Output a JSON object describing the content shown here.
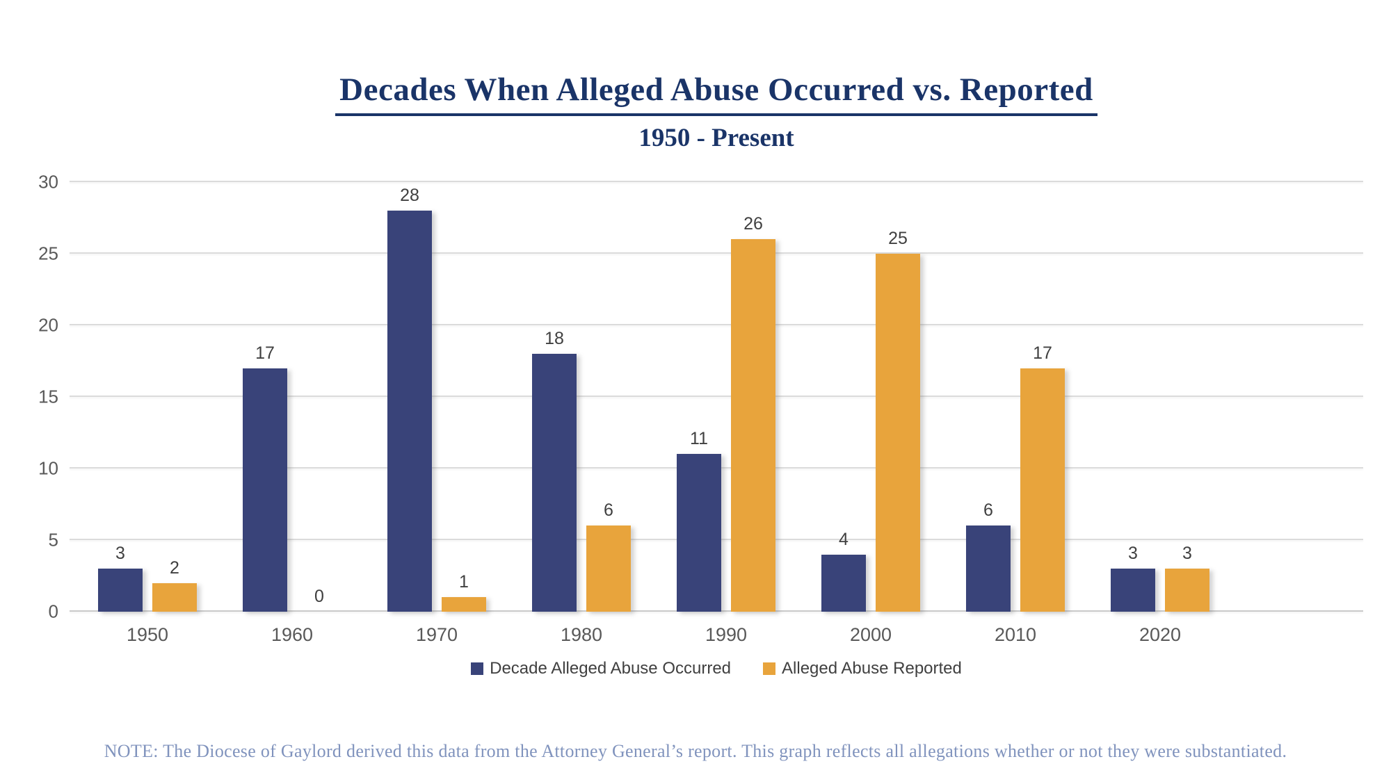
{
  "header": {
    "title": "Decades When Alleged Abuse Occurred vs. Reported",
    "subtitle": "1950 - Present"
  },
  "chart_data": {
    "type": "bar",
    "title": "Decades When Alleged Abuse Occurred vs. Reported",
    "subtitle": "1950 - Present",
    "categories": [
      "1950",
      "1960",
      "1970",
      "1980",
      "1990",
      "2000",
      "2010",
      "2020"
    ],
    "series": [
      {
        "name": "Decade Alleged Abuse Occurred",
        "color": "#394379",
        "values": [
          3,
          17,
          28,
          18,
          11,
          4,
          6,
          3
        ]
      },
      {
        "name": "Alleged Abuse Reported",
        "color": "#E8A43C",
        "values": [
          2,
          0,
          1,
          6,
          26,
          25,
          17,
          3
        ]
      }
    ],
    "xlabel": "",
    "ylabel": "",
    "ylim": [
      0,
      30
    ],
    "yticks": [
      0,
      5,
      10,
      15,
      20,
      25,
      30
    ],
    "grid": true,
    "legend_position": "bottom",
    "data_labels": true
  },
  "note": {
    "text": "NOTE: The Diocese of Gaylord derived this data from the Attorney General’s report. This graph reflects all allegations whether or not they were substantiated."
  },
  "colors": {
    "title_navy": "#1A3468",
    "note_blue": "#8093BD",
    "axis_gray": "#595959",
    "label_dark": "#404040",
    "gridline": "#DBDBDB",
    "baseline": "#C9C9C9"
  }
}
